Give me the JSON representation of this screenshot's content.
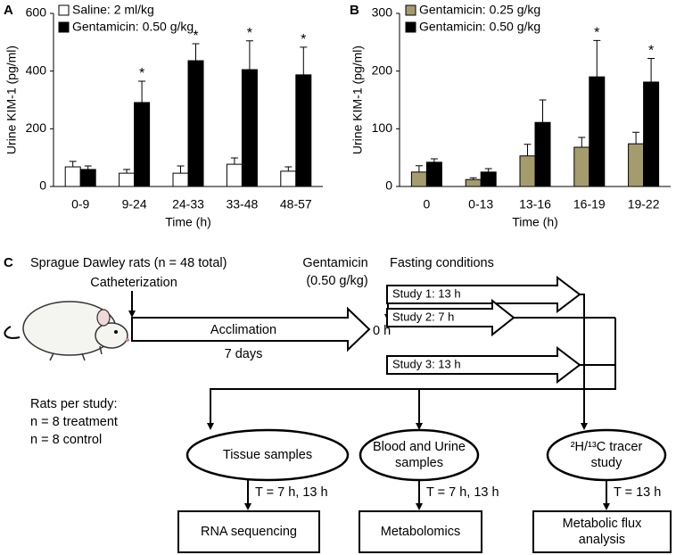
{
  "chart_data": [
    {
      "type": "bar",
      "panel": "A",
      "ylabel": "Urine KIM-1 (pg/ml)",
      "xlabel": "Time (h)",
      "categories": [
        "0-9",
        "9-24",
        "24-33",
        "33-48",
        "48-57"
      ],
      "series": [
        {
          "name": "Saline: 2 ml/kg",
          "color": "#ffffff",
          "values": [
            68,
            46,
            46,
            77,
            53
          ],
          "errors": [
            19,
            13,
            25,
            22,
            15
          ],
          "significance": [
            null,
            null,
            null,
            null,
            null
          ]
        },
        {
          "name": "Gentamicin: 0.50 g/kg",
          "color": "#000000",
          "values": [
            59,
            291,
            436,
            405,
            387
          ],
          "errors": [
            12,
            74,
            59,
            100,
            96
          ],
          "significance": [
            null,
            "*",
            "*",
            "*",
            "*"
          ]
        }
      ],
      "edgecolor": "#000000",
      "ylim": [
        0,
        600
      ],
      "yticks": [
        0,
        200,
        400,
        600
      ],
      "grid": false
    },
    {
      "type": "bar",
      "panel": "B",
      "ylabel": "Urine KIM-1 (pg/ml)",
      "xlabel": "Time (h)",
      "categories": [
        "0",
        "0-13",
        "13-16",
        "16-19",
        "19-22"
      ],
      "series": [
        {
          "name": "Gentamicin: 0.25 g/kg",
          "color": "#a59c6e",
          "values": [
            25,
            12,
            53,
            68,
            74
          ],
          "errors": [
            11,
            3,
            20,
            17,
            20
          ],
          "significance": [
            null,
            null,
            null,
            null,
            null
          ]
        },
        {
          "name": "Gentamicin: 0.50 g/kg",
          "color": "#000000",
          "values": [
            42,
            25,
            111,
            190,
            181
          ],
          "errors": [
            6,
            6,
            39,
            63,
            41
          ],
          "significance": [
            null,
            null,
            null,
            "*",
            "*"
          ]
        }
      ],
      "edgecolor": "#000000",
      "ylim": [
        0,
        300
      ],
      "yticks": [
        0,
        100,
        200,
        300
      ],
      "grid": false
    }
  ],
  "diagram": {
    "panel": "C",
    "cohort": "Sprague Dawley rats (n = 48 total)",
    "catheterization": "Catheterization",
    "acclimation": "Acclimation",
    "acclimation_duration": "7 days",
    "drug": "Gentamicin",
    "dose": "(0.50 g/kg)",
    "time_zero": "0 h",
    "fasting": "Fasting conditions",
    "studies": [
      "Study 1: 13 h",
      "Study 2: 7 h",
      "Study 3: 13 h"
    ],
    "rats_per_study": [
      "Rats per study:",
      "n = 8 treatment",
      "n = 8 control"
    ],
    "samples": [
      {
        "label": [
          "Tissue samples"
        ],
        "time": "T = 7 h, 13 h",
        "analysis": [
          "RNA sequencing"
        ]
      },
      {
        "label": [
          "Blood and Urine",
          "samples"
        ],
        "time": "T = 7 h, 13 h",
        "analysis": [
          "Metabolomics"
        ]
      },
      {
        "label": [
          "²H/¹³C tracer",
          "study"
        ],
        "time": "T = 13 h",
        "analysis": [
          "Metabolic flux",
          "analysis"
        ]
      }
    ]
  }
}
